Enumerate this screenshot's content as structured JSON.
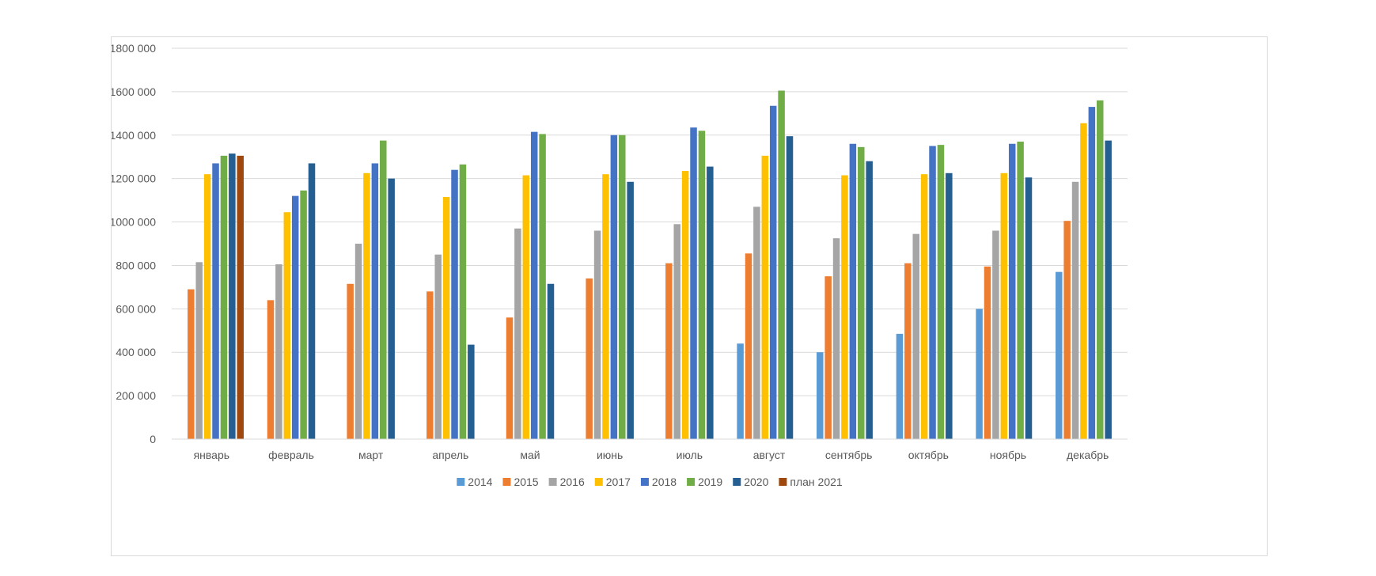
{
  "chart_data": {
    "type": "bar",
    "title": "",
    "xlabel": "",
    "ylabel": "",
    "ylim": [
      0,
      1800000
    ],
    "yticks": [
      0,
      200000,
      400000,
      600000,
      800000,
      1000000,
      1200000,
      1400000,
      1600000,
      1800000
    ],
    "ytick_labels": [
      "0",
      "200 000",
      "400 000",
      "600 000",
      "800 000",
      "1000 000",
      "1200 000",
      "1400 000",
      "1600 000",
      "1800 000"
    ],
    "grid": true,
    "legend_position": "bottom",
    "categories": [
      "январь",
      "февраль",
      "март",
      "апрель",
      "май",
      "июнь",
      "июль",
      "август",
      "сентябрь",
      "октябрь",
      "ноябрь",
      "декабрь"
    ],
    "series": [
      {
        "name": "2014",
        "color": "#5B9BD5",
        "values": [
          null,
          null,
          null,
          null,
          null,
          null,
          null,
          440000,
          400000,
          485000,
          600000,
          770000
        ]
      },
      {
        "name": "2015",
        "color": "#ED7D31",
        "values": [
          690000,
          640000,
          715000,
          680000,
          560000,
          740000,
          810000,
          855000,
          750000,
          810000,
          795000,
          1005000
        ]
      },
      {
        "name": "2016",
        "color": "#A5A5A5",
        "values": [
          815000,
          805000,
          900000,
          850000,
          970000,
          960000,
          990000,
          1070000,
          925000,
          945000,
          960000,
          1185000
        ]
      },
      {
        "name": "2017",
        "color": "#FFC000",
        "values": [
          1220000,
          1045000,
          1225000,
          1115000,
          1215000,
          1220000,
          1235000,
          1305000,
          1215000,
          1220000,
          1225000,
          1455000
        ]
      },
      {
        "name": "2018",
        "color": "#4472C4",
        "values": [
          1270000,
          1120000,
          1270000,
          1240000,
          1415000,
          1400000,
          1435000,
          1535000,
          1360000,
          1350000,
          1360000,
          1530000
        ]
      },
      {
        "name": "2019",
        "color": "#70AD47",
        "values": [
          1305000,
          1145000,
          1375000,
          1265000,
          1405000,
          1400000,
          1420000,
          1605000,
          1345000,
          1355000,
          1370000,
          1560000
        ]
      },
      {
        "name": "2020",
        "color": "#255E91",
        "values": [
          1315000,
          1270000,
          1200000,
          435000,
          715000,
          1185000,
          1255000,
          1395000,
          1280000,
          1225000,
          1205000,
          1375000
        ]
      },
      {
        "name": "план 2021",
        "color": "#9E480E",
        "values": [
          1305000,
          null,
          null,
          null,
          null,
          null,
          null,
          null,
          null,
          null,
          null,
          null
        ]
      }
    ]
  }
}
